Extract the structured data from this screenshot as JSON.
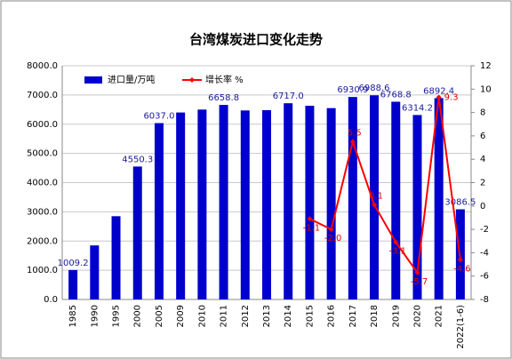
{
  "chart_data": {
    "type": "bar-line",
    "title": "台湾煤炭进口变化走势",
    "categories": [
      "1985",
      "1990",
      "1995",
      "2000",
      "2005",
      "2009",
      "2010",
      "2011",
      "2012",
      "2013",
      "2014",
      "2015",
      "2016",
      "2017",
      "2018",
      "2019",
      "2020",
      "2021",
      "2022(1-6)"
    ],
    "series": [
      {
        "name": "进口量/万吨",
        "type": "bar",
        "color": "#0000cc",
        "values": [
          1009.2,
          1850,
          2850,
          4550.3,
          6037.0,
          6400,
          6500,
          6658.8,
          6470,
          6480,
          6717.0,
          6630,
          6550,
          6930.9,
          6988.6,
          6768.8,
          6314.2,
          6892.4,
          3086.5
        ],
        "value_labels": [
          "1009.2",
          null,
          null,
          "4550.3",
          "6037.0",
          null,
          null,
          "6658.8",
          null,
          null,
          "6717.0",
          null,
          null,
          "6930.9",
          "6988.6",
          "6768.8",
          "6314.2",
          "6892.4",
          "3086.5"
        ]
      },
      {
        "name": "增长率 %",
        "type": "line",
        "axis": "y2",
        "color": "#ff0000",
        "values": [
          null,
          null,
          null,
          null,
          null,
          null,
          null,
          null,
          null,
          null,
          null,
          -1.1,
          -2.0,
          5.5,
          0.1,
          -3.1,
          -5.7,
          9.3,
          -4.6
        ],
        "value_labels": [
          null,
          null,
          null,
          null,
          null,
          null,
          null,
          null,
          null,
          null,
          null,
          "-1.1",
          "-2.0",
          "5.5",
          "0.1",
          "-3.1",
          "-5.7",
          "9.3",
          "-4.6"
        ]
      }
    ],
    "ylim": [
      0,
      8000
    ],
    "yticks": [
      {
        "value": 0,
        "label": "0.0"
      },
      {
        "value": 1000,
        "label": "1000.0"
      },
      {
        "value": 2000,
        "label": "2000.0"
      },
      {
        "value": 3000,
        "label": "3000.0"
      },
      {
        "value": 4000,
        "label": "4000.0"
      },
      {
        "value": 5000,
        "label": "5000.0"
      },
      {
        "value": 6000,
        "label": "6000.0"
      },
      {
        "value": 7000,
        "label": "7000.0"
      },
      {
        "value": 8000,
        "label": "8000.0"
      }
    ],
    "y2lim": [
      -8,
      12
    ],
    "y2ticks": [
      -8,
      -6,
      -4,
      -2,
      0,
      2,
      4,
      6,
      8,
      10,
      12
    ],
    "grid": true
  }
}
